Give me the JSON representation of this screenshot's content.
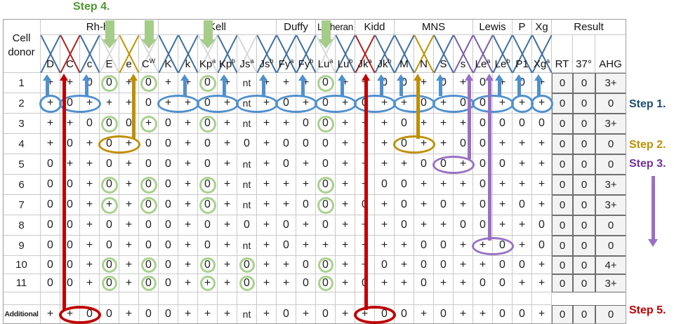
{
  "figure": {
    "corner_line1": "Cell",
    "corner_line2": "donor"
  },
  "groups": [
    {
      "label": "Rh-hr",
      "span": 6
    },
    {
      "label": "Kell",
      "span": 6
    },
    {
      "label": "Duffy",
      "span": 2
    },
    {
      "label": "Lutheran",
      "span": 2
    },
    {
      "label": "Kidd",
      "span": 2
    },
    {
      "label": "MNS",
      "span": 4
    },
    {
      "label": "Lewis",
      "span": 2
    },
    {
      "label": "P",
      "span": 1
    },
    {
      "label": "Xg",
      "span": 1
    },
    {
      "label": "Result",
      "span": 3
    }
  ],
  "columns": [
    {
      "id": "D",
      "base": "D",
      "sup": "",
      "x": "blue"
    },
    {
      "id": "C",
      "base": "C",
      "sup": "",
      "x": "red"
    },
    {
      "id": "c",
      "base": "c",
      "sup": "",
      "x": "blue"
    },
    {
      "id": "E",
      "base": "E",
      "sup": "",
      "x": "gray"
    },
    {
      "id": "e",
      "base": "e",
      "sup": "",
      "x": "yellow"
    },
    {
      "id": "CW",
      "base": "C",
      "sup": "W",
      "x": "gray"
    },
    {
      "id": "K",
      "base": "K",
      "sup": "",
      "x": "blue"
    },
    {
      "id": "k",
      "base": "k",
      "sup": "",
      "x": "blue"
    },
    {
      "id": "Kpa",
      "base": "Kp",
      "sup": "a",
      "x": "gray"
    },
    {
      "id": "Kpb",
      "base": "Kp",
      "sup": "b",
      "x": "blue"
    },
    {
      "id": "Jsa",
      "base": "Js",
      "sup": "a",
      "x": "gray"
    },
    {
      "id": "Jsb",
      "base": "Js",
      "sup": "b",
      "x": "blue"
    },
    {
      "id": "Fya",
      "base": "Fy",
      "sup": "a",
      "x": "blue"
    },
    {
      "id": "Fyb",
      "base": "Fy",
      "sup": "b",
      "x": "blue"
    },
    {
      "id": "Lua",
      "base": "Lu",
      "sup": "a",
      "x": "gray"
    },
    {
      "id": "Lub",
      "base": "Lu",
      "sup": "b",
      "x": "blue"
    },
    {
      "id": "Jka",
      "base": "Jk",
      "sup": "a",
      "x": "red"
    },
    {
      "id": "Jkb",
      "base": "Jk",
      "sup": "b",
      "x": "blue"
    },
    {
      "id": "M",
      "base": "M",
      "sup": "",
      "x": "blue"
    },
    {
      "id": "N",
      "base": "N",
      "sup": "",
      "x": "yellow"
    },
    {
      "id": "S",
      "base": "S",
      "sup": "",
      "x": "blue"
    },
    {
      "id": "s",
      "base": "s",
      "sup": "",
      "x": "purple"
    },
    {
      "id": "Lea",
      "base": "Le",
      "sup": "a",
      "x": "purple"
    },
    {
      "id": "Leb",
      "base": "Le",
      "sup": "b",
      "x": "blue"
    },
    {
      "id": "P1",
      "base": "P1",
      "sup": "",
      "x": "blue"
    },
    {
      "id": "Xga",
      "base": "Xg",
      "sup": "a",
      "x": "blue"
    }
  ],
  "result_headers": [
    "RT",
    "37°",
    "AHG"
  ],
  "rows": [
    {
      "label": "1",
      "cells": [
        "+",
        "+",
        "0",
        "0",
        "+",
        "0",
        "+",
        "+",
        "0",
        "+",
        "nt",
        "+",
        "+",
        "+",
        "0",
        "+",
        "+",
        "0",
        "0",
        "+",
        "0",
        "+",
        "0",
        "+",
        "0",
        "+"
      ],
      "result": [
        "0",
        "0",
        "3+"
      ]
    },
    {
      "label": "2",
      "cells": [
        "+",
        "0",
        "+",
        "+",
        "+",
        "0",
        "+",
        "+",
        "0",
        "+",
        "nt",
        "+",
        "0",
        "+",
        "0",
        "+",
        "0",
        "+",
        "+",
        "0",
        "+",
        "0",
        "0",
        "+",
        "+",
        "+"
      ],
      "result": [
        "0",
        "0",
        "0"
      ]
    },
    {
      "label": "3",
      "cells": [
        "+",
        "+",
        "0",
        "0",
        "0",
        "+",
        "0",
        "+",
        "0",
        "+",
        "nt",
        "+",
        "+",
        "0",
        "0",
        "+",
        "+",
        "+",
        "0",
        "+",
        "+",
        "+",
        "0",
        "0",
        "0",
        "0"
      ],
      "result": [
        "0",
        "0",
        "3+"
      ]
    },
    {
      "label": "4",
      "cells": [
        "+",
        "0",
        "+",
        "0",
        "+",
        "0",
        "0",
        "+",
        "0",
        "+",
        "0",
        "+",
        "0",
        "0",
        "0",
        "+",
        "+",
        "+",
        "0",
        "+",
        "+",
        "0",
        "0",
        "+",
        "+",
        "+"
      ],
      "result": [
        "0",
        "0",
        "0"
      ]
    },
    {
      "label": "5",
      "cells": [
        "0",
        "+",
        "+",
        "0",
        "+",
        "0",
        "0",
        "+",
        "0",
        "+",
        "nt",
        "+",
        "0",
        "+",
        "0",
        "+",
        "+",
        "+",
        "+",
        "0",
        "0",
        "+",
        "0",
        "0",
        "+",
        "+"
      ],
      "result": [
        "0",
        "0",
        "0"
      ]
    },
    {
      "label": "6",
      "cells": [
        "0",
        "0",
        "+",
        "0",
        "+",
        "0",
        "0",
        "+",
        "0",
        "+",
        "nt",
        "+",
        "+",
        "+",
        "0",
        "+",
        "+",
        "0",
        "0",
        "+",
        "+",
        "+",
        "0",
        "+",
        "+",
        "+"
      ],
      "result": [
        "0",
        "0",
        "3+"
      ]
    },
    {
      "label": "7",
      "cells": [
        "0",
        "0",
        "+",
        "+",
        "+",
        "0",
        "0",
        "+",
        "0",
        "+",
        "nt",
        "+",
        "+",
        "0",
        "0",
        "+",
        "0",
        "+",
        "0",
        "+",
        "0",
        "+",
        "0",
        "+",
        "0",
        "+"
      ],
      "result": [
        "0",
        "0",
        "3+"
      ]
    },
    {
      "label": "8",
      "cells": [
        "0",
        "0",
        "+",
        "0",
        "+",
        "0",
        "0",
        "+",
        "0",
        "+",
        "0",
        "+",
        "0",
        "+",
        "0",
        "+",
        "+",
        "+",
        "0",
        "+",
        "+",
        "0",
        "0",
        "+",
        "+",
        "0"
      ],
      "result": [
        "0",
        "0",
        "0"
      ]
    },
    {
      "label": "9",
      "cells": [
        "0",
        "0",
        "+",
        "0",
        "+",
        "0",
        "0",
        "+",
        "0",
        "+",
        "nt",
        "+",
        "0",
        "+",
        "+",
        "+",
        "+",
        "+",
        "+",
        "0",
        "0",
        "+",
        "+",
        "0",
        "+",
        "0"
      ],
      "result": [
        "0",
        "0",
        "0"
      ]
    },
    {
      "label": "10",
      "cells": [
        "0",
        "0",
        "+",
        "0",
        "+",
        "0",
        "0",
        "+",
        "0",
        "+",
        "0",
        "+",
        "+",
        "0",
        "0",
        "+",
        "+",
        "0",
        "+",
        "0",
        "0",
        "+",
        "+",
        "0",
        "0",
        "+"
      ],
      "result": [
        "0",
        "0",
        "4+"
      ]
    },
    {
      "label": "11",
      "cells": [
        "0",
        "0",
        "+",
        "0",
        "+",
        "0",
        "0",
        "+",
        "+",
        "+",
        "0",
        "+",
        "+",
        "0",
        "0",
        "+",
        "0",
        "+",
        "+",
        "0",
        "+",
        "+",
        "0",
        "0",
        "+",
        "+"
      ],
      "result": [
        "0",
        "0",
        "3+"
      ]
    },
    {
      "label": "",
      "cells": [
        "",
        "",
        "",
        "",
        "",
        "",
        "",
        "",
        "",
        "",
        "",
        "",
        "",
        "",
        "",
        "",
        "",
        "",
        "",
        "",
        "",
        "",
        "",
        "",
        "",
        ""
      ],
      "result": [
        "",
        "",
        ""
      ]
    },
    {
      "label": "Additional",
      "cells": [
        "+",
        "+",
        "0",
        "0",
        "+",
        "0",
        "0",
        "+",
        "+",
        "+",
        "nt",
        "+",
        "0",
        "+",
        "0",
        "+",
        "+",
        "0",
        "0",
        "+",
        "0",
        "+",
        "+",
        "0",
        "0",
        "+"
      ],
      "result": [
        "0",
        "0",
        "0"
      ]
    }
  ],
  "steps": {
    "step1": {
      "label": "Step 1.",
      "color": "#1F4E79"
    },
    "step2": {
      "label": "Step 2.",
      "color": "#BF8F00"
    },
    "step3": {
      "label": "Step 3.",
      "color": "#7030A0"
    },
    "step4": {
      "label": "Step 4.",
      "color": "#4E9A2F"
    },
    "step5": {
      "label": "Step 5.",
      "color": "#C00000"
    }
  },
  "annotations": {
    "green_circles": [
      {
        "row": 0,
        "cols": [
          "E",
          "CW",
          "Kpa",
          "Lua"
        ]
      },
      {
        "row": 2,
        "cols": [
          "E",
          "CW",
          "Kpa",
          "Lua"
        ]
      },
      {
        "row": 5,
        "cols": [
          "E",
          "CW",
          "Kpa",
          "Lua"
        ]
      },
      {
        "row": 6,
        "cols": [
          "E",
          "CW",
          "Kpa",
          "Lua"
        ]
      },
      {
        "row": 9,
        "cols": [
          "E",
          "CW",
          "Kpa",
          "Jsa",
          "Lua"
        ]
      },
      {
        "row": 10,
        "cols": [
          "E",
          "CW",
          "Kpa",
          "Jsa",
          "Lua"
        ]
      }
    ],
    "blue_ovals": [
      {
        "row": 1,
        "from": "D",
        "to": "D"
      },
      {
        "row": 1,
        "from": "C",
        "to": "c"
      },
      {
        "row": 1,
        "from": "K",
        "to": "k"
      },
      {
        "row": 1,
        "from": "Kpa",
        "to": "Kpb"
      },
      {
        "row": 1,
        "from": "Jsa",
        "to": "Jsb"
      },
      {
        "row": 1,
        "from": "Fya",
        "to": "Fyb"
      },
      {
        "row": 1,
        "from": "Lua",
        "to": "Lub"
      },
      {
        "row": 1,
        "from": "Jka",
        "to": "Jkb"
      },
      {
        "row": 1,
        "from": "M",
        "to": "N"
      },
      {
        "row": 1,
        "from": "S",
        "to": "s"
      },
      {
        "row": 1,
        "from": "Lea",
        "to": "Leb"
      },
      {
        "row": 1,
        "from": "P1",
        "to": "P1"
      },
      {
        "row": 1,
        "from": "Xga",
        "to": "Xga"
      }
    ],
    "colored_ovals": [
      {
        "row": 3,
        "from": "E",
        "to": "e",
        "color": "yellow"
      },
      {
        "row": 3,
        "from": "M",
        "to": "N",
        "color": "yellow"
      },
      {
        "row": 4,
        "from": "S",
        "to": "s",
        "color": "purple"
      },
      {
        "row": 8,
        "from": "Lea",
        "to": "Leb",
        "color": "purple"
      },
      {
        "row": 12,
        "from": "C",
        "to": "c",
        "color": "red"
      },
      {
        "row": 12,
        "from": "Jka",
        "to": "Jkb",
        "color": "red"
      }
    ],
    "short_arrows": [
      "D",
      "c",
      "k",
      "Kpb",
      "Jsb",
      "Fyb",
      "Lub",
      "Jkb",
      "M",
      "S",
      "Leb",
      "P1",
      "Xga"
    ],
    "long_arrows": [
      {
        "col": "C",
        "frac": 0.2,
        "from_row": 12,
        "color": "red"
      },
      {
        "col": "Jka",
        "frac": 0.55,
        "from_row": 12,
        "color": "red"
      },
      {
        "col": "e",
        "frac": 0.72,
        "from_row": 3,
        "color": "yellow"
      },
      {
        "col": "N",
        "frac": 0.18,
        "from_row": 3,
        "color": "yellow"
      },
      {
        "col": "s",
        "frac": 0.8,
        "from_row": 4,
        "color": "purple"
      },
      {
        "col": "Lea",
        "frac": 0.85,
        "from_row": 8,
        "color": "purple"
      }
    ],
    "green_arrows": [
      "E",
      "CW",
      "Kpa",
      "Lua"
    ]
  },
  "palette": {
    "grid_line": "#C9C9C9",
    "outer_border": "#9E9E9E",
    "result_border": "#6F6F6F",
    "result_bg": "#F3F3F3",
    "text": "#1F1F1F",
    "arrow_blue": "#4F90CE",
    "oval_blue": "#4F90CE",
    "red": "#C00000",
    "yellow": "#BF8F00",
    "purple": "#9A6FC4",
    "green_circle": "#A9D18E",
    "green_arrow": "#A6CC8A",
    "x_colors": {
      "blue": "#3E6F9E",
      "red": "#B02020",
      "yellow": "#C09100",
      "purple": "#7A5EA8",
      "gray": "#D9D9D9"
    }
  }
}
